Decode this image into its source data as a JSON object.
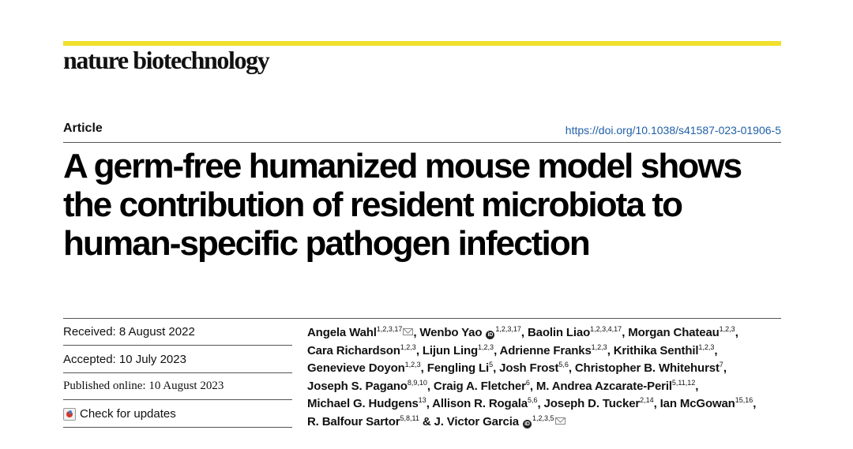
{
  "header": {
    "journal": "nature biotechnology",
    "accent_color": "#f0e02c"
  },
  "article": {
    "type": "Article",
    "doi": "https://doi.org/10.1038/s41587-023-01906-5",
    "doi_color": "#1f5fa7",
    "title_lines": [
      "A germ-free humanized mouse model shows",
      "the contribution of resident microbiota to",
      "human-specific pathogen infection"
    ]
  },
  "dates": {
    "received": "Received: 8 August 2022",
    "accepted": "Accepted: 10 July 2023",
    "published": "Published online: 10 August 2023"
  },
  "check_updates": {
    "label": "Check for updates",
    "icon": "check-for-updates-icon"
  },
  "authors": [
    {
      "name": "Angela Wahl",
      "aff": "1,2,3,17",
      "mail": true,
      "orcid": false,
      "sep": ", "
    },
    {
      "name": "Wenbo Yao",
      "aff": "1,2,3,17",
      "mail": false,
      "orcid": true,
      "sep": ", "
    },
    {
      "name": "Baolin Liao",
      "aff": "1,2,3,4,17",
      "mail": false,
      "orcid": false,
      "sep": ", "
    },
    {
      "name": "Morgan Chateau",
      "aff": "1,2,3",
      "mail": false,
      "orcid": false,
      "sep": ","
    },
    {
      "name": "Cara Richardson",
      "aff": "1,2,3",
      "mail": false,
      "orcid": false,
      "sep": ", "
    },
    {
      "name": "Lijun Ling",
      "aff": "1,2,3",
      "mail": false,
      "orcid": false,
      "sep": ", "
    },
    {
      "name": "Adrienne Franks",
      "aff": "1,2,3",
      "mail": false,
      "orcid": false,
      "sep": ", "
    },
    {
      "name": "Krithika Senthil",
      "aff": "1,2,3",
      "mail": false,
      "orcid": false,
      "sep": ","
    },
    {
      "name": "Genevieve Doyon",
      "aff": "1,2,3",
      "mail": false,
      "orcid": false,
      "sep": ", "
    },
    {
      "name": "Fengling Li",
      "aff": "5",
      "mail": false,
      "orcid": false,
      "sep": ", "
    },
    {
      "name": "Josh Frost",
      "aff": "5,6",
      "mail": false,
      "orcid": false,
      "sep": ", "
    },
    {
      "name": "Christopher B. Whitehurst",
      "aff": "7",
      "mail": false,
      "orcid": false,
      "sep": ","
    },
    {
      "name": "Joseph S. Pagano",
      "aff": "8,9,10",
      "mail": false,
      "orcid": false,
      "sep": ", "
    },
    {
      "name": "Craig A. Fletcher",
      "aff": "6",
      "mail": false,
      "orcid": false,
      "sep": ", "
    },
    {
      "name": "M. Andrea Azcarate-Peril",
      "aff": "5,11,12",
      "mail": false,
      "orcid": false,
      "sep": ","
    },
    {
      "name": "Michael G. Hudgens",
      "aff": "13",
      "mail": false,
      "orcid": false,
      "sep": ", "
    },
    {
      "name": "Allison R. Rogala",
      "aff": "5,6",
      "mail": false,
      "orcid": false,
      "sep": ", "
    },
    {
      "name": "Joseph D. Tucker",
      "aff": "2,14",
      "mail": false,
      "orcid": false,
      "sep": ", "
    },
    {
      "name": "Ian McGowan",
      "aff": "15,16",
      "mail": false,
      "orcid": false,
      "sep": ","
    },
    {
      "name": "R. Balfour Sartor",
      "aff": "5,8,11",
      "mail": false,
      "orcid": false,
      "sep": " & "
    },
    {
      "name": "J. Victor Garcia",
      "aff": "1,2,3,5",
      "mail": true,
      "orcid": true,
      "sep": ""
    }
  ],
  "author_lines": [
    [
      0,
      1,
      2,
      3
    ],
    [
      4,
      5,
      6,
      7
    ],
    [
      8,
      9,
      10,
      11
    ],
    [
      12,
      13,
      14
    ],
    [
      15,
      16,
      17,
      18
    ],
    [
      19,
      20
    ]
  ]
}
